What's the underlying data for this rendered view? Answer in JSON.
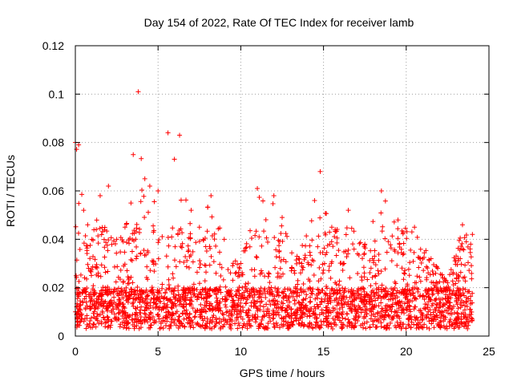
{
  "chart_data": {
    "type": "scatter",
    "title": "Day 154 of 2022, Rate Of TEC Index for receiver lamb",
    "xlabel": "GPS time / hours",
    "ylabel": "ROTI / TECUs",
    "xlim": [
      0,
      25
    ],
    "ylim": [
      0,
      0.12
    ],
    "xticks": [
      0,
      5,
      10,
      15,
      20,
      25
    ],
    "xtick_labels": [
      "0",
      "5",
      "10",
      "15",
      "20",
      "25"
    ],
    "yticks": [
      0,
      0.02,
      0.04,
      0.06,
      0.08,
      0.1,
      0.12
    ],
    "ytick_labels": [
      "0",
      "0.02",
      "0.04",
      "0.06",
      "0.08",
      "0.1",
      "0.12"
    ],
    "grid": true,
    "marker": "plus",
    "series": [
      {
        "name": "ROTI",
        "color": "#ff0000",
        "x_range": [
          0,
          24
        ],
        "note": "dense scatter; baseline 0.003-0.02, frequent spikes to 0.04-0.06",
        "envelope": [
          {
            "x": 0.0,
            "max": 0.08
          },
          {
            "x": 0.2,
            "max": 0.079
          },
          {
            "x": 0.5,
            "max": 0.052
          },
          {
            "x": 1.0,
            "max": 0.04
          },
          {
            "x": 1.5,
            "max": 0.058
          },
          {
            "x": 2.0,
            "max": 0.062
          },
          {
            "x": 2.5,
            "max": 0.04
          },
          {
            "x": 3.0,
            "max": 0.045
          },
          {
            "x": 3.5,
            "max": 0.075
          },
          {
            "x": 3.8,
            "max": 0.101
          },
          {
            "x": 4.2,
            "max": 0.065
          },
          {
            "x": 4.5,
            "max": 0.062
          },
          {
            "x": 5.0,
            "max": 0.06
          },
          {
            "x": 5.6,
            "max": 0.084
          },
          {
            "x": 6.3,
            "max": 0.083
          },
          {
            "x": 7.0,
            "max": 0.052
          },
          {
            "x": 7.5,
            "max": 0.045
          },
          {
            "x": 8.2,
            "max": 0.058
          },
          {
            "x": 9.0,
            "max": 0.04
          },
          {
            "x": 10.0,
            "max": 0.03
          },
          {
            "x": 11.0,
            "max": 0.061
          },
          {
            "x": 12.0,
            "max": 0.058
          },
          {
            "x": 12.5,
            "max": 0.049
          },
          {
            "x": 13.5,
            "max": 0.032
          },
          {
            "x": 14.8,
            "max": 0.068
          },
          {
            "x": 15.5,
            "max": 0.045
          },
          {
            "x": 16.5,
            "max": 0.052
          },
          {
            "x": 17.5,
            "max": 0.038
          },
          {
            "x": 18.5,
            "max": 0.06
          },
          {
            "x": 19.5,
            "max": 0.048
          },
          {
            "x": 20.5,
            "max": 0.045
          },
          {
            "x": 21.5,
            "max": 0.032
          },
          {
            "x": 22.5,
            "max": 0.022
          },
          {
            "x": 23.4,
            "max": 0.046
          },
          {
            "x": 24.0,
            "max": 0.042
          }
        ]
      }
    ]
  }
}
